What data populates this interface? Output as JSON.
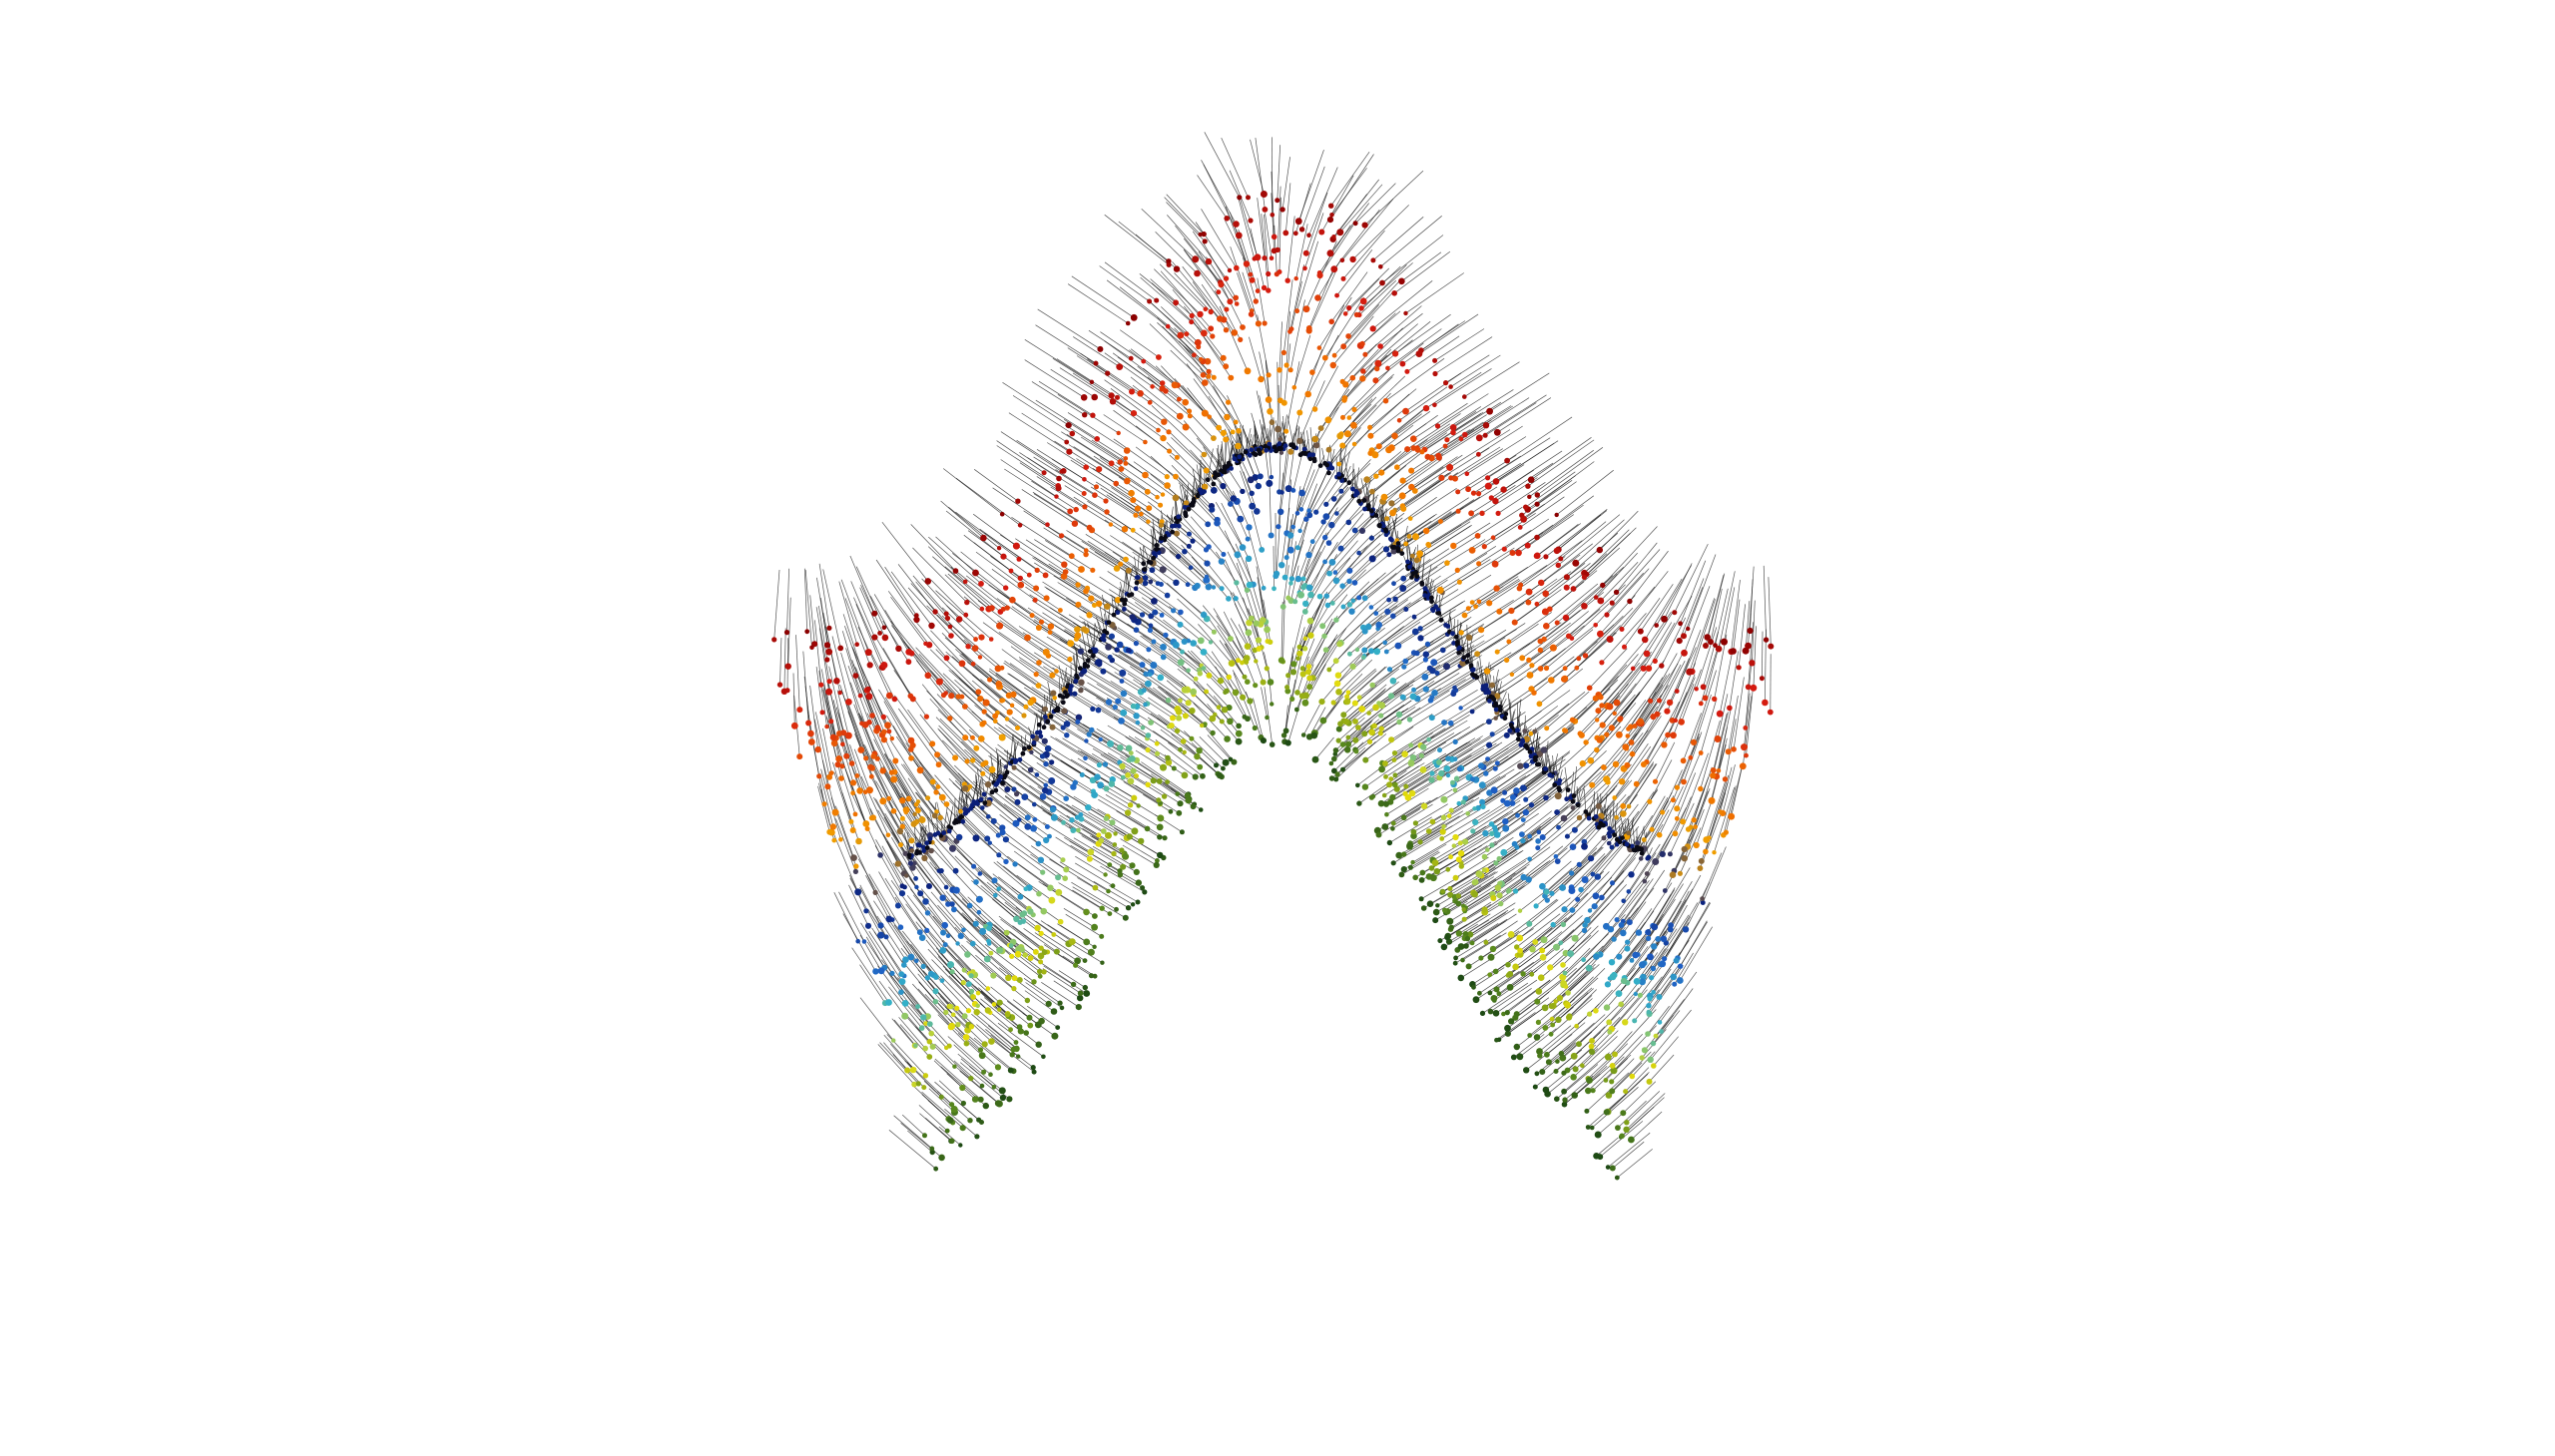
{
  "figure": {
    "kind": "particle-vector-field",
    "background": "#ffffff",
    "stem_color": "#1a1a1a"
  },
  "palette": {
    "outer_dark_red": "#8b0000",
    "outer_red": "#d41a10",
    "orange": "#f07000",
    "amber": "#f0a000",
    "yellow": "#e6dc0a",
    "cyan": "#33b0c8",
    "blue": "#1f5fc4",
    "navy": "#0a1e78",
    "olive": "#5a8a1e",
    "dark_green": "#1e4a14",
    "black_ridge": "#0a0a14"
  },
  "bands": [
    {
      "name": "outer-red-layer",
      "colors": [
        "outer_dark_red",
        "outer_red"
      ]
    },
    {
      "name": "orange-layer",
      "colors": [
        "orange",
        "amber"
      ]
    },
    {
      "name": "inner-blue-layer",
      "colors": [
        "navy",
        "blue",
        "cyan"
      ]
    },
    {
      "name": "inner-yellow-layer",
      "colors": [
        "yellow",
        "cyan",
        "olive"
      ]
    },
    {
      "name": "base-green-layer",
      "colors": [
        "olive",
        "dark_green"
      ]
    }
  ]
}
